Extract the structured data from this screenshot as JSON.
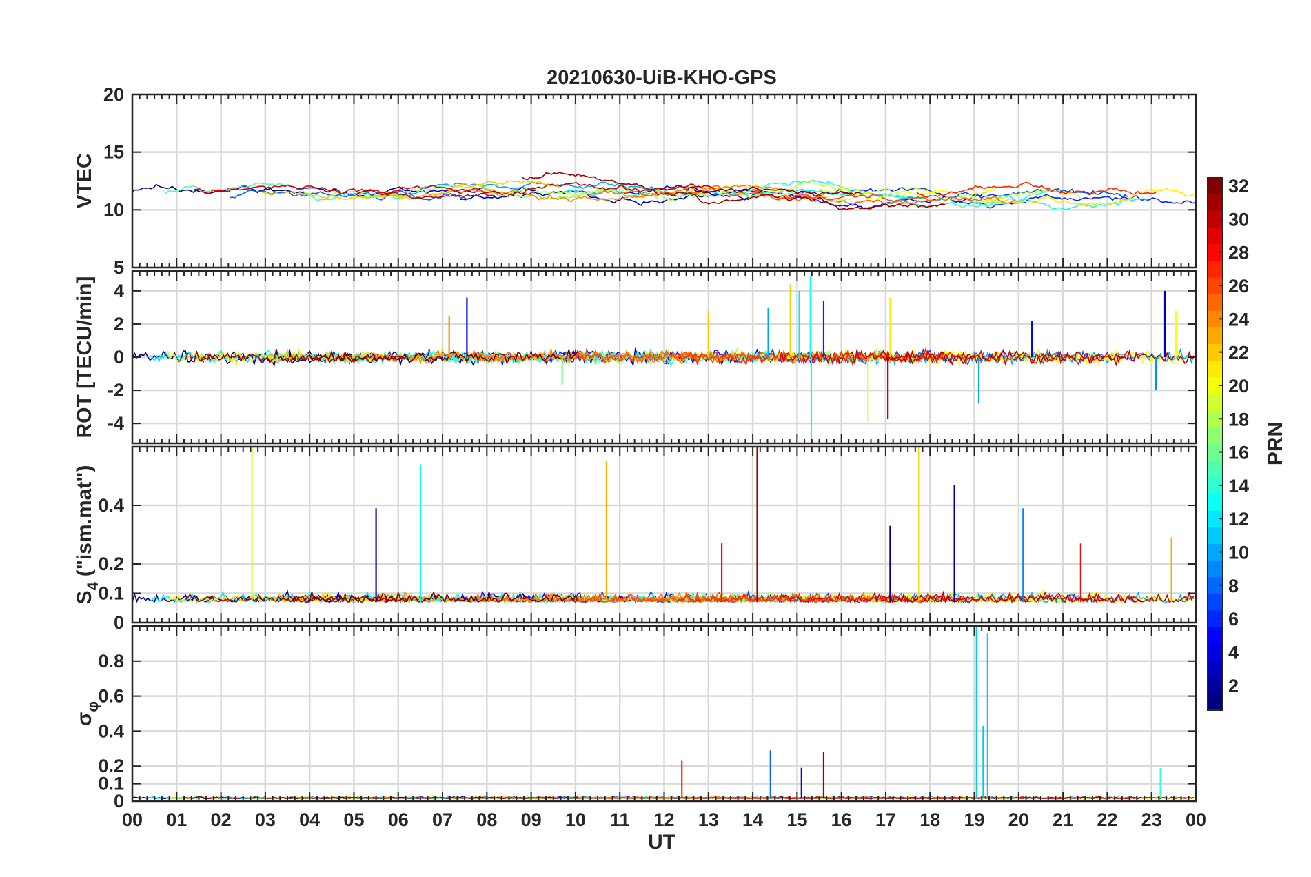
{
  "chart_data": {
    "type": "line",
    "title": "20210630-UiB-KHO-GPS",
    "xlabel": "UT",
    "x_ticks": [
      "00",
      "01",
      "02",
      "03",
      "04",
      "05",
      "06",
      "07",
      "08",
      "09",
      "10",
      "11",
      "12",
      "13",
      "14",
      "15",
      "16",
      "17",
      "18",
      "19",
      "20",
      "21",
      "22",
      "23",
      "00"
    ],
    "xlim": [
      0,
      24
    ],
    "grid": true,
    "panels": [
      {
        "id": "vtec",
        "ylabel": "VTEC",
        "ylim": [
          5,
          20
        ],
        "y_ticks": [
          5,
          10,
          15,
          20
        ],
        "y_tick_labels": [
          "5",
          "10",
          "15",
          "20"
        ],
        "baseline": 11.2,
        "noise": 0.9,
        "style": "smooth"
      },
      {
        "id": "rot",
        "ylabel": "ROT [TECU/min]",
        "ylim": [
          -5.2,
          5.2
        ],
        "y_ticks": [
          -4,
          -2,
          0,
          2,
          4
        ],
        "y_tick_labels": [
          "-4",
          "-2",
          "0",
          "2",
          "4"
        ],
        "baseline": 0,
        "noise": 0.35,
        "style": "noise"
      },
      {
        "id": "s4",
        "ylabel": "S4 (\"ism.mat\")",
        "ylabel_main": "S",
        "ylabel_sub": "4",
        "ylabel_rest": "(\"ism.mat\")",
        "ylim": [
          0,
          0.6
        ],
        "y_ticks": [
          0,
          0.1,
          0.2,
          0.4
        ],
        "y_tick_labels": [
          "0",
          "0.1",
          "0.2",
          "0.4"
        ],
        "baseline": 0.07,
        "noise": 0.025,
        "style": "positive"
      },
      {
        "id": "sigma",
        "ylabel": "σφ",
        "ylabel_main": "σ",
        "ylabel_sub": "φ",
        "ylim": [
          0,
          1
        ],
        "y_ticks": [
          0,
          0.1,
          0.2,
          0.4,
          0.6,
          0.8
        ],
        "y_tick_labels": [
          "0",
          "0.1",
          "0.2",
          "0.4",
          "0.6",
          "0.8"
        ],
        "baseline": 0.015,
        "noise": 0.008,
        "style": "positive"
      }
    ],
    "series_prn": [
      1,
      2,
      3,
      5,
      6,
      7,
      8,
      10,
      12,
      13,
      14,
      15,
      17,
      18,
      19,
      20,
      21,
      22,
      24,
      25,
      26,
      27,
      29,
      30,
      31,
      32
    ],
    "spikes": {
      "rot": [
        {
          "t": 7.55,
          "v": 3.6,
          "prn": 4
        },
        {
          "t": 7.15,
          "v": 2.5,
          "prn": 24
        },
        {
          "t": 9.7,
          "v": -1.7,
          "prn": 16
        },
        {
          "t": 13.0,
          "v": 2.8,
          "prn": 22
        },
        {
          "t": 14.35,
          "v": 3.0,
          "prn": 10
        },
        {
          "t": 14.85,
          "v": 4.4,
          "prn": 22
        },
        {
          "t": 15.05,
          "v": 4.0,
          "prn": 12
        },
        {
          "t": 15.3,
          "v": 4.9,
          "prn": 13
        },
        {
          "t": 15.32,
          "v": -5.0,
          "prn": 13
        },
        {
          "t": 15.6,
          "v": 3.4,
          "prn": 6
        },
        {
          "t": 16.6,
          "v": -3.9,
          "prn": 19
        },
        {
          "t": 17.05,
          "v": -3.7,
          "prn": 31
        },
        {
          "t": 17.1,
          "v": 3.6,
          "prn": 21
        },
        {
          "t": 19.1,
          "v": -2.8,
          "prn": 10
        },
        {
          "t": 20.3,
          "v": 2.2,
          "prn": 5
        },
        {
          "t": 23.3,
          "v": 4.0,
          "prn": 3
        },
        {
          "t": 23.1,
          "v": -2.0,
          "prn": 9
        },
        {
          "t": 23.55,
          "v": 2.8,
          "prn": 20
        }
      ],
      "s4": [
        {
          "t": 2.7,
          "v": 0.6,
          "prn": 19
        },
        {
          "t": 5.5,
          "v": 0.39,
          "prn": 3
        },
        {
          "t": 6.5,
          "v": 0.54,
          "prn": 13
        },
        {
          "t": 10.7,
          "v": 0.55,
          "prn": 23
        },
        {
          "t": 13.3,
          "v": 0.27,
          "prn": 28
        },
        {
          "t": 14.1,
          "v": 0.6,
          "prn": 31
        },
        {
          "t": 17.1,
          "v": 0.33,
          "prn": 2
        },
        {
          "t": 17.75,
          "v": 0.6,
          "prn": 22
        },
        {
          "t": 18.55,
          "v": 0.47,
          "prn": 2
        },
        {
          "t": 20.1,
          "v": 0.39,
          "prn": 9
        },
        {
          "t": 21.4,
          "v": 0.27,
          "prn": 28
        },
        {
          "t": 23.45,
          "v": 0.29,
          "prn": 23
        }
      ],
      "sigma": [
        {
          "t": 12.4,
          "v": 0.23,
          "prn": 27
        },
        {
          "t": 14.4,
          "v": 0.29,
          "prn": 8
        },
        {
          "t": 15.1,
          "v": 0.19,
          "prn": 4
        },
        {
          "t": 15.6,
          "v": 0.28,
          "prn": 31
        },
        {
          "t": 19.05,
          "v": 1.0,
          "prn": 11
        },
        {
          "t": 19.2,
          "v": 0.43,
          "prn": 11
        },
        {
          "t": 19.3,
          "v": 0.96,
          "prn": 11
        },
        {
          "t": 23.2,
          "v": 0.19,
          "prn": 14
        }
      ]
    },
    "colorbar": {
      "label": "PRN",
      "range": [
        1,
        32
      ],
      "ticks": [
        2,
        4,
        6,
        8,
        10,
        12,
        14,
        16,
        18,
        20,
        22,
        24,
        26,
        28,
        30,
        32
      ],
      "tick_labels": [
        "2",
        "4",
        "6",
        "8",
        "10",
        "12",
        "14",
        "16",
        "18",
        "20",
        "22",
        "24",
        "26",
        "28",
        "30",
        "32"
      ],
      "colormap": "jet"
    }
  }
}
